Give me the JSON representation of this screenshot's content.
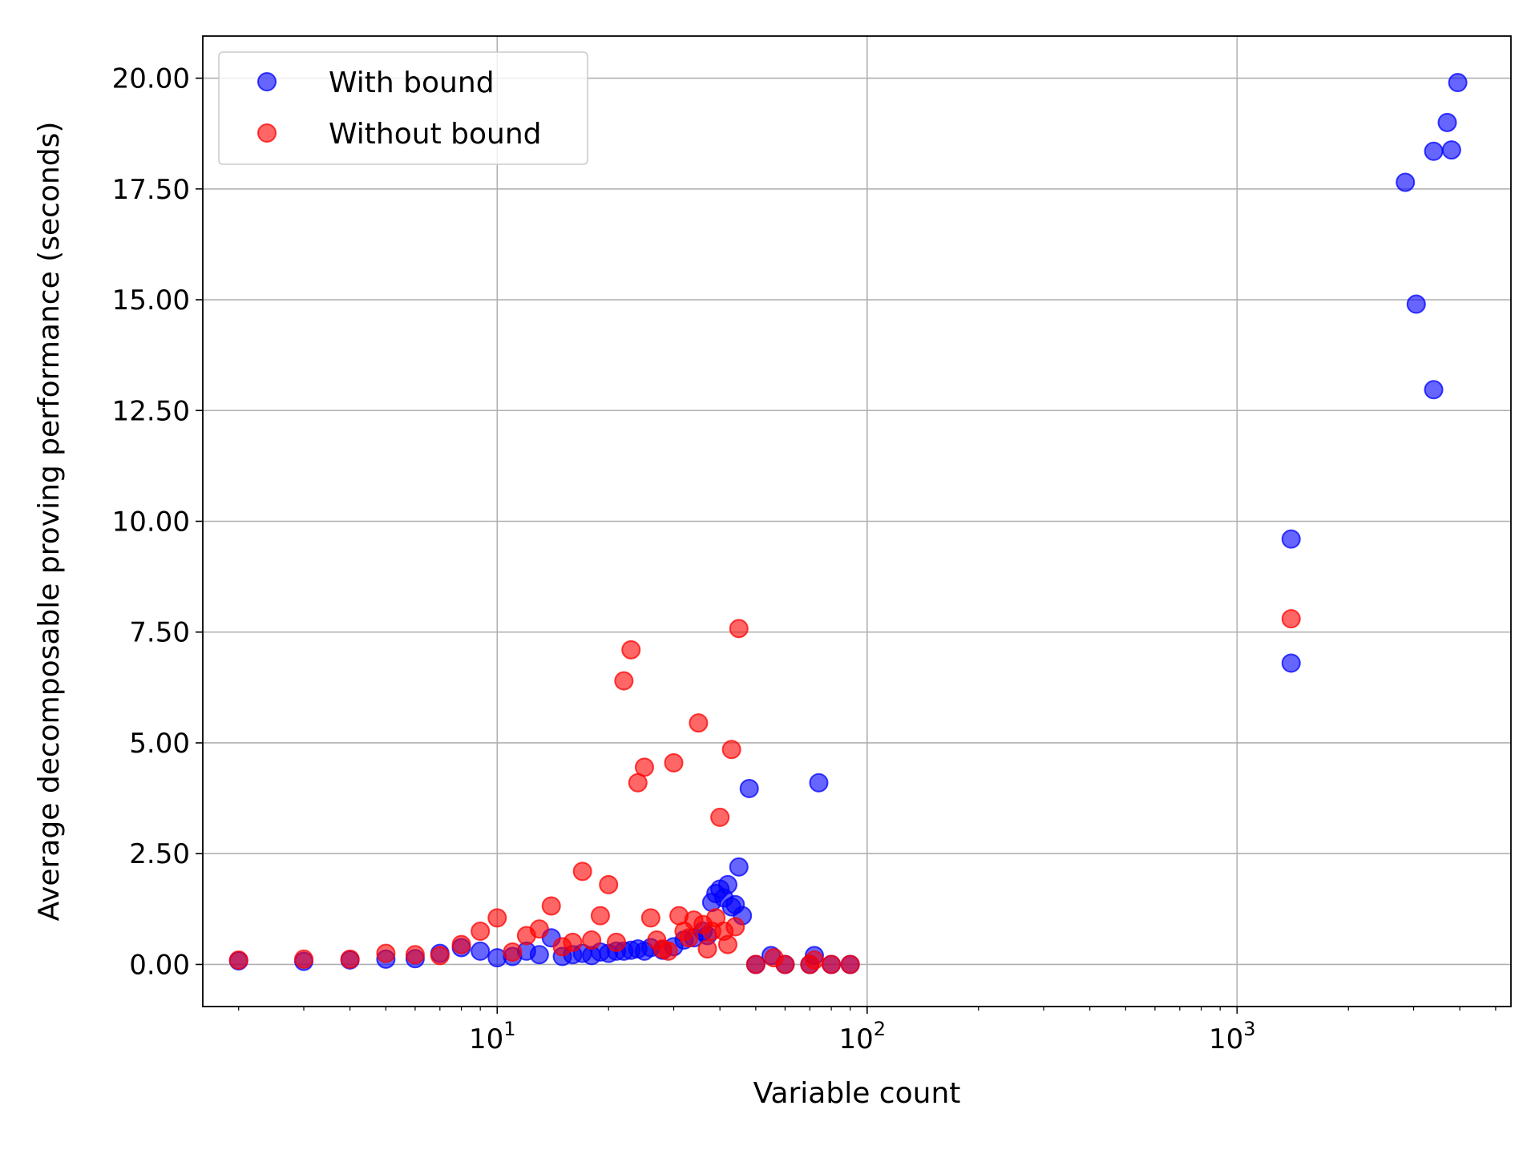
{
  "chart_data": {
    "type": "scatter",
    "title": "",
    "xlabel": "Variable count",
    "ylabel": "Average decomposable proving performance (seconds)",
    "x_scale": "log",
    "xlim": [
      1.6,
      5500
    ],
    "ylim": [
      -0.95,
      20.95
    ],
    "x_ticks": [
      {
        "value": 10,
        "base": "10",
        "exp": "1"
      },
      {
        "value": 100,
        "base": "10",
        "exp": "2"
      },
      {
        "value": 1000,
        "base": "10",
        "exp": "3"
      }
    ],
    "y_ticks": [
      0,
      2.5,
      5,
      7.5,
      10,
      12.5,
      15,
      17.5,
      20
    ],
    "y_tick_labels": [
      "0.00",
      "2.50",
      "5.00",
      "7.50",
      "10.00",
      "12.50",
      "15.00",
      "17.50",
      "20.00"
    ],
    "grid": true,
    "legend_position": "top-left",
    "series": [
      {
        "name": "With bound",
        "color": "#0000ff",
        "points": [
          [
            2,
            0.08
          ],
          [
            3,
            0.07
          ],
          [
            4,
            0.1
          ],
          [
            5,
            0.12
          ],
          [
            6,
            0.13
          ],
          [
            7,
            0.25
          ],
          [
            8,
            0.38
          ],
          [
            9,
            0.3
          ],
          [
            10,
            0.15
          ],
          [
            11,
            0.18
          ],
          [
            12,
            0.3
          ],
          [
            13,
            0.22
          ],
          [
            14,
            0.6
          ],
          [
            15,
            0.18
          ],
          [
            16,
            0.22
          ],
          [
            17,
            0.25
          ],
          [
            18,
            0.2
          ],
          [
            19,
            0.28
          ],
          [
            20,
            0.25
          ],
          [
            21,
            0.3
          ],
          [
            22,
            0.3
          ],
          [
            23,
            0.32
          ],
          [
            24,
            0.35
          ],
          [
            25,
            0.3
          ],
          [
            26,
            0.38
          ],
          [
            28,
            0.32
          ],
          [
            30,
            0.4
          ],
          [
            32,
            0.55
          ],
          [
            34,
            0.6
          ],
          [
            36,
            0.75
          ],
          [
            37,
            0.65
          ],
          [
            38,
            1.4
          ],
          [
            39,
            1.6
          ],
          [
            40,
            1.7
          ],
          [
            41,
            1.5
          ],
          [
            42,
            1.8
          ],
          [
            43,
            1.3
          ],
          [
            44,
            1.35
          ],
          [
            45,
            2.2
          ],
          [
            46,
            1.1
          ],
          [
            48,
            3.97
          ],
          [
            50,
            0.0
          ],
          [
            55,
            0.2
          ],
          [
            60,
            0.0
          ],
          [
            70,
            0.0
          ],
          [
            72,
            0.2
          ],
          [
            74,
            4.1
          ],
          [
            80,
            0.0
          ],
          [
            90,
            0.0
          ],
          [
            1400,
            9.6
          ],
          [
            1400,
            6.8
          ],
          [
            2850,
            17.65
          ],
          [
            3050,
            14.9
          ],
          [
            3400,
            18.35
          ],
          [
            3400,
            12.97
          ],
          [
            3700,
            19.0
          ],
          [
            3800,
            18.38
          ],
          [
            3950,
            19.9
          ]
        ]
      },
      {
        "name": "Without bound",
        "color": "#ff0000",
        "points": [
          [
            2,
            0.1
          ],
          [
            3,
            0.12
          ],
          [
            4,
            0.12
          ],
          [
            5,
            0.25
          ],
          [
            6,
            0.22
          ],
          [
            7,
            0.2
          ],
          [
            8,
            0.45
          ],
          [
            9,
            0.75
          ],
          [
            10,
            1.05
          ],
          [
            11,
            0.28
          ],
          [
            12,
            0.65
          ],
          [
            13,
            0.8
          ],
          [
            14,
            1.32
          ],
          [
            15,
            0.4
          ],
          [
            16,
            0.5
          ],
          [
            17,
            2.1
          ],
          [
            18,
            0.55
          ],
          [
            19,
            1.1
          ],
          [
            20,
            1.8
          ],
          [
            21,
            0.5
          ],
          [
            22,
            6.4
          ],
          [
            23,
            7.1
          ],
          [
            24,
            4.1
          ],
          [
            25,
            4.45
          ],
          [
            26,
            1.05
          ],
          [
            27,
            0.55
          ],
          [
            28,
            0.35
          ],
          [
            29,
            0.3
          ],
          [
            30,
            4.55
          ],
          [
            31,
            1.1
          ],
          [
            32,
            0.75
          ],
          [
            33,
            0.6
          ],
          [
            34,
            1.0
          ],
          [
            35,
            5.45
          ],
          [
            36,
            0.9
          ],
          [
            37,
            0.35
          ],
          [
            38,
            0.75
          ],
          [
            39,
            1.05
          ],
          [
            40,
            3.32
          ],
          [
            41,
            0.75
          ],
          [
            42,
            0.45
          ],
          [
            43,
            4.85
          ],
          [
            44,
            0.85
          ],
          [
            45,
            7.58
          ],
          [
            50,
            0.0
          ],
          [
            56,
            0.15
          ],
          [
            60,
            0.0
          ],
          [
            70,
            0.0
          ],
          [
            72,
            0.1
          ],
          [
            80,
            0.0
          ],
          [
            90,
            0.0
          ],
          [
            1400,
            7.8
          ]
        ]
      }
    ]
  }
}
